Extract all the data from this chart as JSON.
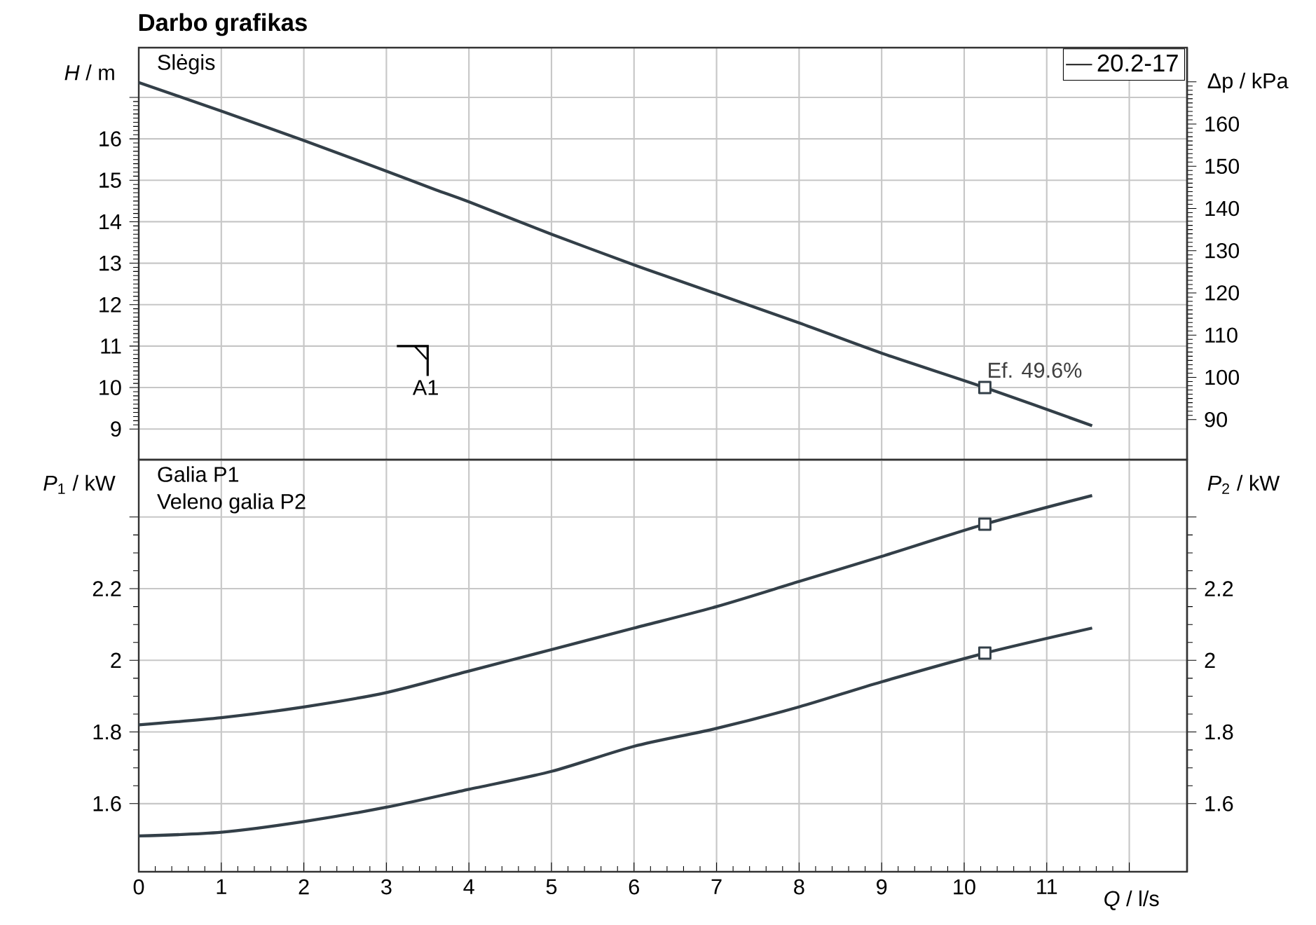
{
  "chart_data": [
    {
      "type": "line",
      "title": "Darbo grafikas",
      "ylabel": "*H* / m",
      "y2label": "Δp / kPa",
      "x": [
        0,
        1,
        2,
        3,
        3.6,
        4,
        5,
        6,
        6.5,
        7,
        8,
        9,
        10.25,
        11.55
      ],
      "series": [
        {
          "name": "20.2-17",
          "color": "#333f48",
          "marker": "none",
          "values": [
            17.36,
            16.67,
            15.96,
            15.22,
            14.77,
            14.48,
            13.7,
            12.96,
            12.61,
            12.26,
            11.56,
            10.83,
            10.0,
            9.08
          ]
        },
        {
          "type": "scatter",
          "color": "#333f48",
          "marker": "square",
          "values": [
            null,
            null,
            null,
            null,
            null,
            null,
            null,
            null,
            null,
            null,
            null,
            null,
            10.0,
            null
          ]
        }
      ],
      "xlim": [
        0,
        12.7
      ],
      "xticks": [
        0,
        1,
        2,
        3,
        4,
        5,
        6,
        7,
        8,
        9,
        10,
        11,
        12
      ],
      "ylim": [
        8.26,
        18.2
      ],
      "yticks": [
        9,
        10,
        11,
        12,
        13,
        14,
        15,
        16,
        {
          "value": 17,
          "label": null
        }
      ],
      "y2lim": [
        80.5,
        178.1
      ],
      "y2ticks": [
        90,
        100,
        110,
        120,
        130,
        140,
        150,
        160,
        {
          "value": 170,
          "label": null
        }
      ],
      "tick_labels": "y",
      "grid": true,
      "legend": "top right",
      "annotations": [
        "Slėgis",
        {
          "text": "Ef.  49.6%",
          "x": 10.25,
          "y": 10.0
        },
        "A1"
      ]
    },
    {
      "type": "line",
      "xlabel": "*Q* / l/s",
      "ylabel": "*P*$_{1}$ / kW",
      "y2label": "*P*$_{2}$ / kW",
      "x": [
        0,
        1,
        2,
        3,
        4,
        5,
        6,
        7,
        8,
        9,
        10.25,
        11.55
      ],
      "series": [
        {
          "color": "#333f48",
          "marker": "none",
          "values": [
            1.82,
            1.84,
            1.87,
            1.91,
            1.97,
            2.03,
            2.09,
            2.15,
            2.22,
            2.29,
            2.38,
            2.46
          ]
        },
        {
          "color": "#333f48",
          "marker": "none",
          "axis": "y2",
          "values": [
            1.51,
            1.52,
            1.55,
            1.59,
            1.64,
            1.69,
            1.76,
            1.81,
            1.87,
            1.94,
            2.02,
            2.09
          ]
        },
        {
          "type": "scatter",
          "color": "#333f48",
          "marker": "square",
          "values": [
            null,
            null,
            null,
            null,
            null,
            null,
            null,
            null,
            null,
            null,
            2.38,
            null
          ]
        },
        {
          "type": "scatter",
          "color": "#333f48",
          "marker": "square",
          "axis": "y2",
          "values": [
            null,
            null,
            null,
            null,
            null,
            null,
            null,
            null,
            null,
            null,
            2.02,
            null
          ]
        }
      ],
      "xlim": [
        0,
        12.7
      ],
      "xticks": [
        0,
        1,
        2,
        3,
        4,
        5,
        6,
        7,
        8,
        9,
        10,
        11,
        {
          "value": 12,
          "label": null
        }
      ],
      "ylim": [
        1.41,
        2.56
      ],
      "yticks": [
        1.6,
        1.8,
        2,
        2.2,
        {
          "value": 2.4,
          "label": null
        }
      ],
      "y2lim": [
        1.41,
        2.56
      ],
      "y2ticks": [
        1.6,
        1.8,
        2,
        2.2,
        {
          "value": 2.4,
          "label": null
        }
      ],
      "grid": true,
      "annotations": [
        "Galia P1",
        "Veleno galia P2"
      ]
    }
  ]
}
